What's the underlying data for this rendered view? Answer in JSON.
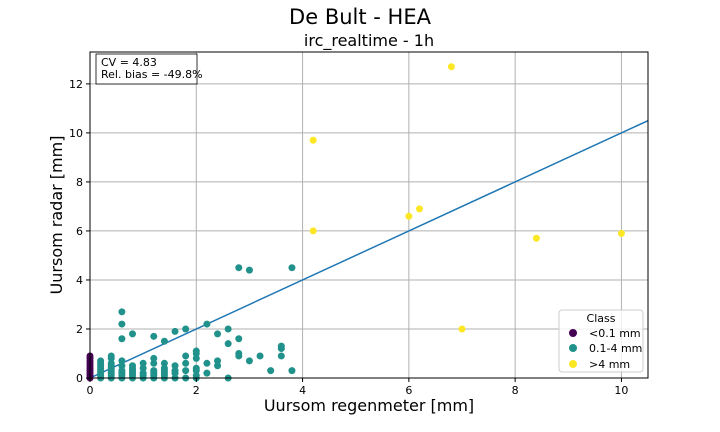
{
  "chart_data": {
    "type": "scatter",
    "title": "De Bult - HEA",
    "subtitle": "irc_realtime - 1h",
    "xlabel": "Uursom regenmeter [mm]",
    "ylabel": "Uursom radar [mm]",
    "xlim": [
      0,
      10.5
    ],
    "ylim": [
      0,
      13.3
    ],
    "xticks": [
      0,
      2,
      4,
      6,
      8,
      10
    ],
    "yticks": [
      0,
      2,
      4,
      6,
      8,
      10,
      12
    ],
    "grid": true,
    "stats_box": {
      "cv": "CV = 4.83",
      "bias": "Rel. bias = -49.8%"
    },
    "legend": {
      "title": "Class",
      "placement": "lower-right",
      "entries": [
        "<0.1 mm",
        "0.1-4 mm",
        ">4 mm"
      ]
    },
    "colors": {
      "<0.1 mm": "#440154",
      "0.1-4 mm": "#21918c",
      ">4 mm": "#fde725",
      "fit_line": "#1f77b4",
      "grid": "#b0b0b0"
    },
    "fit_line": {
      "x": [
        0,
        10.5
      ],
      "y": [
        0,
        10.5
      ]
    },
    "series": [
      {
        "name": "<0.1 mm",
        "points": [
          [
            0,
            0
          ],
          [
            0,
            0.1
          ],
          [
            0,
            0.2
          ],
          [
            0,
            0.3
          ],
          [
            0,
            0.4
          ],
          [
            0,
            0.5
          ],
          [
            0,
            0.6
          ],
          [
            0,
            0.7
          ],
          [
            0,
            0.8
          ],
          [
            0,
            0.9
          ]
        ]
      },
      {
        "name": "0.1-4 mm",
        "points": [
          [
            0.2,
            0
          ],
          [
            0.2,
            0.1
          ],
          [
            0.2,
            0.2
          ],
          [
            0.2,
            0.3
          ],
          [
            0.2,
            0.4
          ],
          [
            0.2,
            0.5
          ],
          [
            0.2,
            0.6
          ],
          [
            0.2,
            0.7
          ],
          [
            0.4,
            0
          ],
          [
            0.4,
            0.1
          ],
          [
            0.4,
            0.2
          ],
          [
            0.4,
            0.3
          ],
          [
            0.4,
            0.4
          ],
          [
            0.4,
            0.5
          ],
          [
            0.4,
            0.6
          ],
          [
            0.4,
            0.8
          ],
          [
            0.4,
            0.9
          ],
          [
            0.6,
            0
          ],
          [
            0.6,
            0.1
          ],
          [
            0.6,
            0.2
          ],
          [
            0.6,
            0.3
          ],
          [
            0.6,
            0.5
          ],
          [
            0.6,
            0.7
          ],
          [
            0.6,
            1.6
          ],
          [
            0.6,
            2.2
          ],
          [
            0.6,
            2.7
          ],
          [
            0.8,
            0
          ],
          [
            0.8,
            0.1
          ],
          [
            0.8,
            0.2
          ],
          [
            0.8,
            0.3
          ],
          [
            0.8,
            0.4
          ],
          [
            0.8,
            0.5
          ],
          [
            0.8,
            1.8
          ],
          [
            1.0,
            0
          ],
          [
            1.0,
            0.1
          ],
          [
            1.0,
            0.2
          ],
          [
            1.0,
            0.4
          ],
          [
            1.0,
            0.6
          ],
          [
            1.2,
            0
          ],
          [
            1.2,
            0.1
          ],
          [
            1.2,
            0.2
          ],
          [
            1.2,
            0.3
          ],
          [
            1.2,
            0.6
          ],
          [
            1.2,
            0.8
          ],
          [
            1.2,
            1.7
          ],
          [
            1.4,
            0
          ],
          [
            1.4,
            0.1
          ],
          [
            1.4,
            0.2
          ],
          [
            1.4,
            0.3
          ],
          [
            1.4,
            0.4
          ],
          [
            1.4,
            0.6
          ],
          [
            1.4,
            1.5
          ],
          [
            1.6,
            0
          ],
          [
            1.6,
            0.2
          ],
          [
            1.6,
            0.3
          ],
          [
            1.6,
            0.5
          ],
          [
            1.6,
            1.9
          ],
          [
            1.8,
            0
          ],
          [
            1.8,
            0.3
          ],
          [
            1.8,
            0.6
          ],
          [
            1.8,
            0.9
          ],
          [
            1.8,
            2.0
          ],
          [
            2.0,
            0
          ],
          [
            2.0,
            0.1
          ],
          [
            2.0,
            0.3
          ],
          [
            2.0,
            0.4
          ],
          [
            2.0,
            0.8
          ],
          [
            2.0,
            1.0
          ],
          [
            2.0,
            1.1
          ],
          [
            2.2,
            0.2
          ],
          [
            2.2,
            0.6
          ],
          [
            2.2,
            2.2
          ],
          [
            2.4,
            0.5
          ],
          [
            2.4,
            0.7
          ],
          [
            2.4,
            1.8
          ],
          [
            2.6,
            0
          ],
          [
            2.6,
            1.4
          ],
          [
            2.6,
            2.0
          ],
          [
            2.8,
            0.9
          ],
          [
            2.8,
            1.0
          ],
          [
            2.8,
            1.6
          ],
          [
            2.8,
            4.5
          ],
          [
            3.0,
            0.7
          ],
          [
            3.0,
            4.4
          ],
          [
            3.2,
            0.9
          ],
          [
            3.4,
            0.3
          ],
          [
            3.6,
            0.9
          ],
          [
            3.6,
            1.2
          ],
          [
            3.6,
            1.3
          ],
          [
            3.8,
            0.3
          ],
          [
            3.8,
            4.5
          ]
        ]
      },
      {
        "name": ">4 mm",
        "points": [
          [
            4.2,
            9.7
          ],
          [
            4.2,
            6.0
          ],
          [
            6.0,
            6.6
          ],
          [
            6.2,
            6.9
          ],
          [
            6.8,
            12.7
          ],
          [
            7.0,
            2.0
          ],
          [
            8.4,
            5.7
          ],
          [
            10.0,
            5.9
          ]
        ]
      }
    ]
  }
}
